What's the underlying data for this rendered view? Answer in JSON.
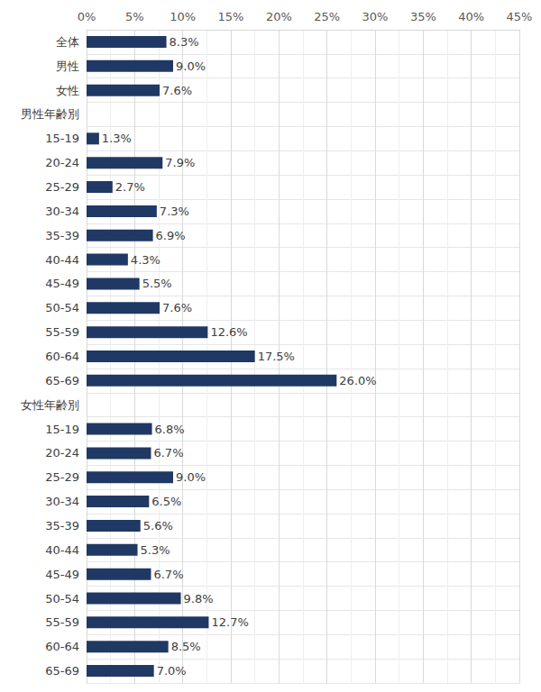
{
  "chart_data": {
    "type": "bar",
    "orientation": "horizontal",
    "categories": [
      "全体",
      "男性",
      "女性",
      "男性年齢別",
      "15-19",
      "20-24",
      "25-29",
      "30-34",
      "35-39",
      "40-44",
      "45-49",
      "50-54",
      "55-59",
      "60-64",
      "65-69",
      "女性年齢別",
      "15-19",
      "20-24",
      "25-29",
      "30-34",
      "35-39",
      "40-44",
      "45-49",
      "50-54",
      "55-59",
      "60-64",
      "65-69"
    ],
    "values": [
      8.3,
      9.0,
      7.6,
      null,
      1.3,
      7.9,
      2.7,
      7.3,
      6.9,
      4.3,
      5.5,
      7.6,
      12.6,
      17.5,
      26.0,
      null,
      6.8,
      6.7,
      9.0,
      6.5,
      5.6,
      5.3,
      6.7,
      9.8,
      12.7,
      8.5,
      7.0
    ],
    "value_labels": [
      "8.3%",
      "9.0%",
      "7.6%",
      null,
      "1.3%",
      "7.9%",
      "2.7%",
      "7.3%",
      "6.9%",
      "4.3%",
      "5.5%",
      "7.6%",
      "12.6%",
      "17.5%",
      "26.0%",
      null,
      "6.8%",
      "6.7%",
      "9.0%",
      "6.5%",
      "5.6%",
      "5.3%",
      "6.7%",
      "9.8%",
      "12.7%",
      "8.5%",
      "7.0%"
    ],
    "color": "#203864",
    "xlim": [
      0,
      45
    ],
    "xticks": [
      {
        "value": 0,
        "label": "0%"
      },
      {
        "value": 5,
        "label": "5%"
      },
      {
        "value": 10,
        "label": "10%"
      },
      {
        "value": 15,
        "label": "15%"
      },
      {
        "value": 20,
        "label": "20%"
      },
      {
        "value": 25,
        "label": "25%"
      },
      {
        "value": 30,
        "label": "30%"
      },
      {
        "value": 35,
        "label": "35%"
      },
      {
        "value": 40,
        "label": "40%"
      },
      {
        "value": 45,
        "label": "45%"
      }
    ],
    "grid": true,
    "data_labels": true
  }
}
